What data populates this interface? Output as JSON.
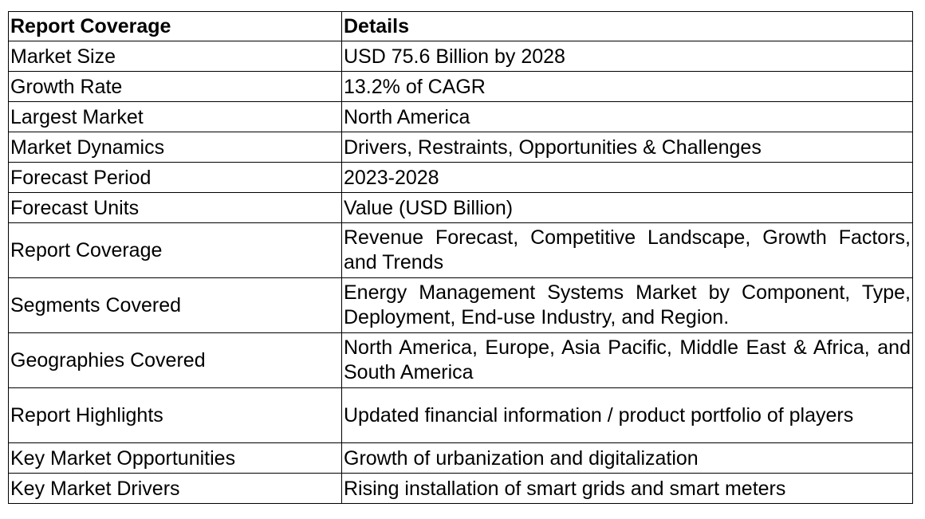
{
  "header": {
    "col1": "Report Coverage",
    "col2": "Details"
  },
  "rows": [
    {
      "label": "Market Size",
      "value": "USD 75.6 Billion by 2028"
    },
    {
      "label": "Growth Rate",
      "value": "13.2% of CAGR"
    },
    {
      "label": "Largest Market",
      "value": "North America"
    },
    {
      "label": "Market Dynamics",
      "value": "Drivers, Restraints, Opportunities & Challenges"
    },
    {
      "label": "Forecast Period",
      "value": "2023-2028"
    },
    {
      "label": "Forecast Units",
      "value": "Value (USD Billion)"
    },
    {
      "label": "Report Coverage",
      "value": "Revenue Forecast, Competitive Landscape, Growth Factors, and Trends"
    },
    {
      "label": "Segments Covered",
      "value": "Energy Management Systems Market by Component, Type, Deployment, End-use Industry, and Region."
    },
    {
      "label": "Geographies Covered",
      "value": "North America, Europe, Asia Pacific, Middle East & Africa, and South America"
    },
    {
      "label": "Report Highlights",
      "value": "Updated financial information / product portfolio of players"
    },
    {
      "label": "Key Market Opportunities",
      "value": "Growth of urbanization and digitalization"
    },
    {
      "label": "Key Market Drivers",
      "value": "Rising installation of smart grids and smart meters"
    }
  ]
}
